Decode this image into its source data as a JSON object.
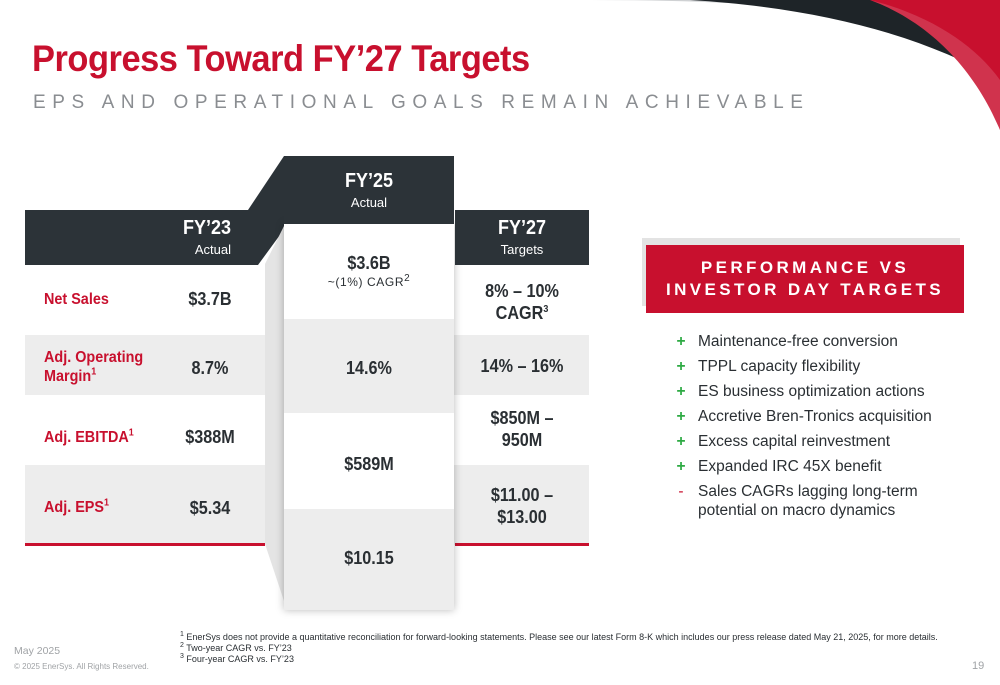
{
  "header": {
    "title": "Progress Toward FY’27 Targets",
    "subtitle": "EPS AND OPERATIONAL GOALS REMAIN ACHIEVABLE"
  },
  "table": {
    "columns": [
      {
        "title": "FY’23",
        "subtitle": "Actual"
      },
      {
        "title": "FY’25",
        "subtitle": "Actual"
      },
      {
        "title": "FY’27",
        "subtitle": "Targets"
      }
    ],
    "rows": [
      {
        "label": "Net Sales",
        "footnote": "",
        "fy23": "$3.7B",
        "fy25": "$3.6B",
        "fy25_note": "~(1%) CAGR",
        "fy25_note_sup": "2",
        "fy27_line1": "8% – 10%",
        "fy27_line2": "CAGR",
        "fy27_sup": "3"
      },
      {
        "label_line1": "Adj. Operating",
        "label_line2": "Margin",
        "footnote": "1",
        "fy23": "8.7%",
        "fy25": "14.6%",
        "fy27_line1": "14% – 16%"
      },
      {
        "label": "Adj. EBITDA",
        "footnote": "1",
        "fy23": "$388M",
        "fy25": "$589M",
        "fy27_line1": "$850M –",
        "fy27_line2": "950M"
      },
      {
        "label": "Adj. EPS",
        "footnote": "1",
        "fy23": "$5.34",
        "fy25": "$10.15",
        "fy27_line1": "$11.00 –",
        "fy27_line2": "$13.00"
      }
    ]
  },
  "performance": {
    "title_line1": "PERFORMANCE VS",
    "title_line2": "INVESTOR DAY TARGETS",
    "items": [
      {
        "symbol": "+",
        "text": "Maintenance-free conversion"
      },
      {
        "symbol": "+",
        "text": "TPPL capacity flexibility"
      },
      {
        "symbol": "+",
        "text": "ES business optimization actions"
      },
      {
        "symbol": "+",
        "text": "Accretive Bren-Tronics acquisition"
      },
      {
        "symbol": "+",
        "text": "Excess capital reinvestment"
      },
      {
        "symbol": "+",
        "text": "Expanded IRC 45X benefit"
      },
      {
        "symbol": "-",
        "text": "Sales CAGRs lagging long-term potential on macro dynamics"
      }
    ]
  },
  "footnotes": [
    {
      "num": "1",
      "text": "EnerSys does not provide a quantitative reconciliation for forward-looking statements. Please see our latest Form 8-K which includes our press release dated May 21, 2025, for more details."
    },
    {
      "num": "2",
      "text": "Two-year CAGR vs. FY’23"
    },
    {
      "num": "3",
      "text": "Four-year CAGR vs. FY’23"
    }
  ],
  "footer": {
    "date": "May 2025",
    "copyright": "© 2025 EnerSys. All Rights Reserved.",
    "page_number": "19"
  },
  "colors": {
    "brand_red": "#c8102e",
    "header_dark": "#2c3338",
    "plus_green": "#2eaa44",
    "band_gray": "#ededed"
  }
}
